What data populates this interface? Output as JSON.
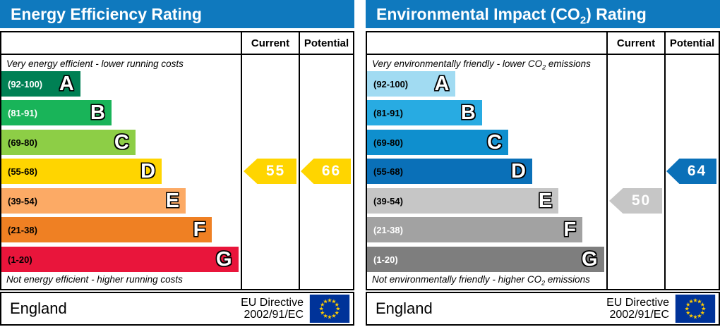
{
  "header_color": "#0f79be",
  "columns": {
    "current": "Current",
    "potential": "Potential"
  },
  "footer": {
    "region": "England",
    "directive_line1": "EU Directive",
    "directive_line2": "2002/91/EC",
    "flag": {
      "background": "#003399",
      "star_color": "#ffcc00"
    }
  },
  "panels": [
    {
      "title": {
        "pre": "Energy Efficiency Rating",
        "sub": "",
        "post": ""
      },
      "caption_top": {
        "pre": "Very energy efficient - lower running costs",
        "sub": "",
        "post": ""
      },
      "caption_bottom": {
        "pre": "Not energy efficient - higher running costs",
        "sub": "",
        "post": ""
      },
      "bands": [
        {
          "letter": "A",
          "range": "(92-100)",
          "color": "#008054",
          "width_pct": 33,
          "range_color": "#ffffff"
        },
        {
          "letter": "B",
          "range": "(81-91)",
          "color": "#19b459",
          "width_pct": 46,
          "range_color": "#ffffff"
        },
        {
          "letter": "C",
          "range": "(69-80)",
          "color": "#8dce46",
          "width_pct": 56,
          "range_color": "#000000"
        },
        {
          "letter": "D",
          "range": "(55-68)",
          "color": "#ffd500",
          "width_pct": 67,
          "range_color": "#000000"
        },
        {
          "letter": "E",
          "range": "(39-54)",
          "color": "#fcaa65",
          "width_pct": 77,
          "range_color": "#000000"
        },
        {
          "letter": "F",
          "range": "(21-38)",
          "color": "#ef8023",
          "width_pct": 88,
          "range_color": "#000000"
        },
        {
          "letter": "G",
          "range": "(1-20)",
          "color": "#e9153b",
          "width_pct": 99,
          "range_color": "#000000"
        }
      ],
      "arrows": {
        "current": {
          "value": "55",
          "band_index": 3,
          "color": "#ffd500",
          "text_color": "#ffffff"
        },
        "potential": {
          "value": "66",
          "band_index": 3,
          "color": "#ffd500",
          "text_color": "#ffffff"
        }
      }
    },
    {
      "title": {
        "pre": "Environmental Impact (CO",
        "sub": "2",
        "post": ") Rating"
      },
      "caption_top": {
        "pre": "Very environmentally friendly - lower CO",
        "sub": "2",
        "post": " emissions"
      },
      "caption_bottom": {
        "pre": "Not environmentally friendly - higher CO",
        "sub": "2",
        "post": " emissions"
      },
      "bands": [
        {
          "letter": "A",
          "range": "(92-100)",
          "color": "#a1dbf2",
          "width_pct": 37,
          "range_color": "#000000"
        },
        {
          "letter": "B",
          "range": "(81-91)",
          "color": "#28abe2",
          "width_pct": 48,
          "range_color": "#000000"
        },
        {
          "letter": "C",
          "range": "(69-80)",
          "color": "#0f8fce",
          "width_pct": 59,
          "range_color": "#000000"
        },
        {
          "letter": "D",
          "range": "(55-68)",
          "color": "#0a70b8",
          "width_pct": 69,
          "range_color": "#000000"
        },
        {
          "letter": "E",
          "range": "(39-54)",
          "color": "#c6c6c6",
          "width_pct": 80,
          "range_color": "#000000"
        },
        {
          "letter": "F",
          "range": "(21-38)",
          "color": "#a2a2a2",
          "width_pct": 90,
          "range_color": "#ffffff"
        },
        {
          "letter": "G",
          "range": "(1-20)",
          "color": "#7e7e7e",
          "width_pct": 99,
          "range_color": "#ffffff"
        }
      ],
      "arrows": {
        "current": {
          "value": "50",
          "band_index": 4,
          "color": "#c6c6c6",
          "text_color": "#ffffff"
        },
        "potential": {
          "value": "64",
          "band_index": 3,
          "color": "#0a70b8",
          "text_color": "#ffffff"
        }
      }
    }
  ],
  "chart_data": [
    {
      "type": "bar",
      "title": "Energy Efficiency Rating",
      "categories": [
        "A (92-100)",
        "B (81-91)",
        "C (69-80)",
        "D (55-68)",
        "E (39-54)",
        "F (21-38)",
        "G (1-20)"
      ],
      "band_lengths_pct": [
        33,
        46,
        56,
        67,
        77,
        88,
        99
      ],
      "current": 55,
      "current_band": "D",
      "potential": 66,
      "potential_band": "D",
      "top_note": "Very energy efficient - lower running costs",
      "bottom_note": "Not energy efficient - higher running costs",
      "region": "England",
      "directive": "EU Directive 2002/91/EC"
    },
    {
      "type": "bar",
      "title": "Environmental Impact (CO2) Rating",
      "categories": [
        "A (92-100)",
        "B (81-91)",
        "C (69-80)",
        "D (55-68)",
        "E (39-54)",
        "F (21-38)",
        "G (1-20)"
      ],
      "band_lengths_pct": [
        37,
        48,
        59,
        69,
        80,
        90,
        99
      ],
      "current": 50,
      "current_band": "E",
      "potential": 64,
      "potential_band": "D",
      "top_note": "Very environmentally friendly - lower CO2 emissions",
      "bottom_note": "Not environmentally friendly - higher CO2 emissions",
      "region": "England",
      "directive": "EU Directive 2002/91/EC"
    }
  ]
}
